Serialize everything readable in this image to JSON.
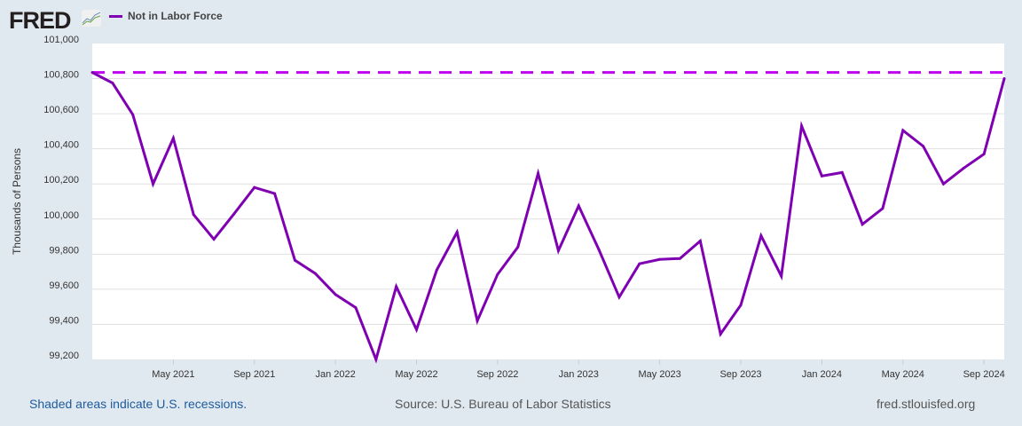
{
  "header": {
    "logo": "FRED",
    "legend_label": "Not in Labor Force"
  },
  "footer": {
    "recession_note": "Shaded areas indicate U.S. recessions.",
    "source": "Source: U.S. Bureau of Labor Statistics",
    "site": "fred.stlouisfed.org"
  },
  "colors": {
    "series": "#7f00b2",
    "reference": "#c000f0"
  },
  "chart_data": {
    "type": "line",
    "title": "",
    "xlabel": "",
    "ylabel": "Thousands of Persons",
    "ylim": [
      99200,
      101000
    ],
    "yticks": [
      99200,
      99400,
      99600,
      99800,
      100000,
      100200,
      100400,
      100600,
      100800,
      101000
    ],
    "ytick_labels": [
      "99,200",
      "99,400",
      "99,600",
      "99,800",
      "100,000",
      "100,200",
      "100,400",
      "100,600",
      "100,800",
      "101,000"
    ],
    "xtick_labels": [
      "May 2021",
      "Sep 2021",
      "Jan 2022",
      "May 2022",
      "Sep 2022",
      "Jan 2023",
      "May 2023",
      "Sep 2023",
      "Jan 2024",
      "May 2024",
      "Sep 2024"
    ],
    "xtick_index": [
      4,
      8,
      12,
      16,
      20,
      24,
      28,
      32,
      36,
      40,
      44
    ],
    "start": "2021-01",
    "frequency": "monthly",
    "reference_line": {
      "value": 100835,
      "style": "dashed"
    },
    "series": [
      {
        "name": "Not in Labor Force",
        "values": [
          100835,
          100775,
          100595,
          100200,
          100460,
          100025,
          99885,
          100030,
          100180,
          100145,
          99765,
          99690,
          99570,
          99495,
          99200,
          99615,
          99370,
          99710,
          99925,
          99420,
          99685,
          99840,
          100260,
          99820,
          100075,
          99825,
          99555,
          99745,
          99770,
          99775,
          99875,
          99345,
          99510,
          99905,
          99675,
          100530,
          100245,
          100265,
          99970,
          100060,
          100505,
          100415,
          100200,
          100290,
          100370,
          100800
        ]
      }
    ]
  }
}
